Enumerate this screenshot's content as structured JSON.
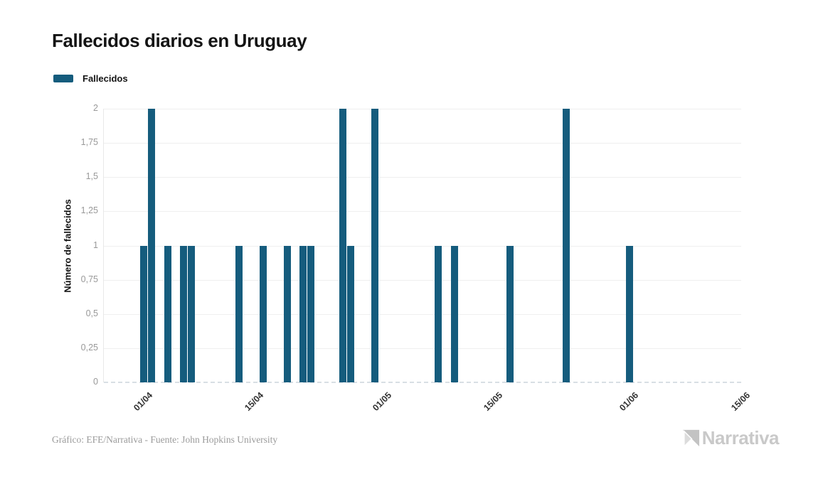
{
  "title": "Fallecidos diarios en Uruguay",
  "legend": {
    "label": "Fallecidos"
  },
  "footer": {
    "credit": "Gráfico: EFE/Narrativa - Fuente: John Hopkins University"
  },
  "brand": {
    "name": "Narrativa"
  },
  "colors": {
    "bar": "#155C7D",
    "grid": "#efefef",
    "axis_line": "#e8e8e8",
    "baseline_dash": "#d8dfe4",
    "y_tick_label": "#999999",
    "x_tick_label": "#333333",
    "title_text": "#141414",
    "credit_text": "#9b9b9b",
    "brand_text": "#c9c9c9"
  },
  "chart_data": {
    "type": "bar",
    "title": "Fallecidos diarios en Uruguay",
    "xlabel": "",
    "ylabel": "Número de fallecidos",
    "ylim": [
      0,
      2
    ],
    "grid": true,
    "legend_position": "top-left",
    "x_domain": [
      "28/03",
      "16/06"
    ],
    "x_ticks": [
      "01/04",
      "15/04",
      "01/05",
      "15/05",
      "01/06",
      "15/06"
    ],
    "y_ticks": [
      {
        "value": 0,
        "label": "0"
      },
      {
        "value": 0.25,
        "label": "0,25"
      },
      {
        "value": 0.5,
        "label": "0,5"
      },
      {
        "value": 0.75,
        "label": "0,75"
      },
      {
        "value": 1,
        "label": "1"
      },
      {
        "value": 1.25,
        "label": "1,25"
      },
      {
        "value": 1.5,
        "label": "1,5"
      },
      {
        "value": 1.75,
        "label": "1,75"
      },
      {
        "value": 2,
        "label": "2"
      }
    ],
    "series": [
      {
        "name": "Fallecidos",
        "points": [
          {
            "date": "02/04",
            "value": 1
          },
          {
            "date": "03/04",
            "value": 2
          },
          {
            "date": "05/04",
            "value": 1
          },
          {
            "date": "07/04",
            "value": 1
          },
          {
            "date": "08/04",
            "value": 1
          },
          {
            "date": "14/04",
            "value": 1
          },
          {
            "date": "17/04",
            "value": 1
          },
          {
            "date": "20/04",
            "value": 1
          },
          {
            "date": "22/04",
            "value": 1
          },
          {
            "date": "23/04",
            "value": 1
          },
          {
            "date": "27/04",
            "value": 2
          },
          {
            "date": "28/04",
            "value": 1
          },
          {
            "date": "01/05",
            "value": 2
          },
          {
            "date": "09/05",
            "value": 1
          },
          {
            "date": "11/05",
            "value": 1
          },
          {
            "date": "18/05",
            "value": 1
          },
          {
            "date": "25/05",
            "value": 2
          },
          {
            "date": "02/06",
            "value": 1
          }
        ]
      }
    ]
  }
}
